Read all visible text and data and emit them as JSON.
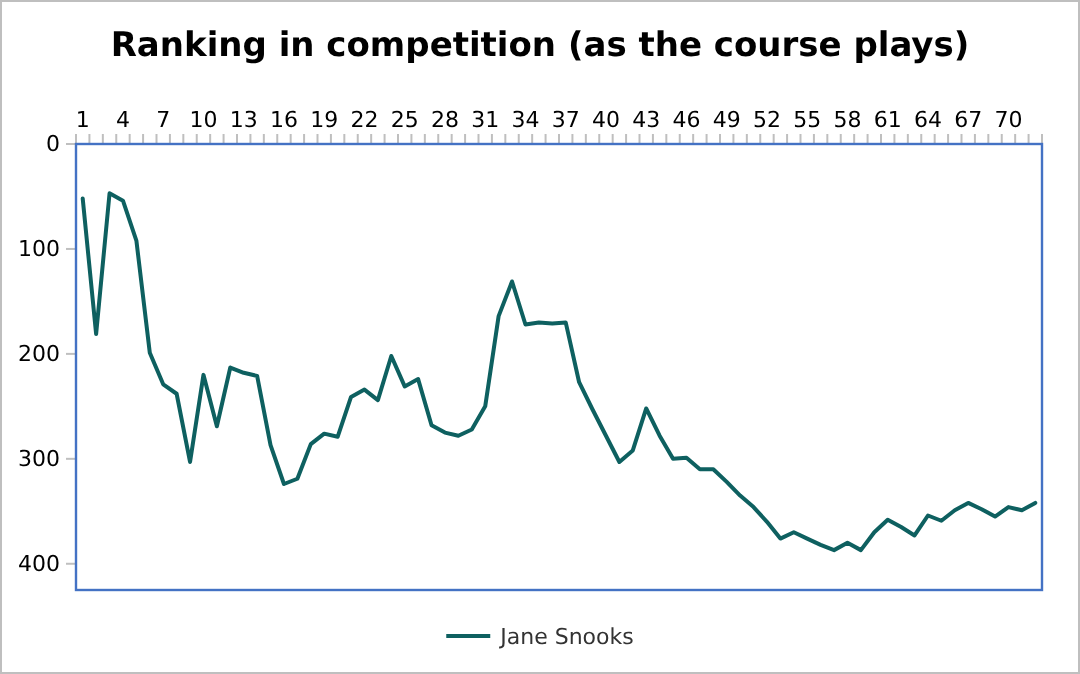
{
  "chart_data": {
    "type": "line",
    "title": "Ranking in competition (as the course plays)",
    "categories": [
      "1",
      null,
      null,
      "4",
      null,
      null,
      "7",
      null,
      null,
      "10",
      null,
      null,
      "13",
      null,
      null,
      "16",
      null,
      null,
      "19",
      null,
      null,
      "22",
      null,
      null,
      "25",
      null,
      null,
      "28",
      null,
      null,
      "31",
      null,
      null,
      "34",
      null,
      null,
      "37",
      null,
      null,
      "40",
      null,
      null,
      "43",
      null,
      null,
      "46",
      null,
      null,
      "49",
      null,
      null,
      "52",
      null,
      null,
      "55",
      null,
      null,
      "58",
      null,
      null,
      "61",
      null,
      null,
      "64",
      null,
      null,
      "67",
      null,
      null,
      "70",
      null,
      null
    ],
    "series": [
      {
        "name": "Jane Snooks",
        "color": "#0e6060",
        "values": [
          52,
          181,
          47,
          54,
          92,
          199,
          229,
          238,
          303,
          220,
          269,
          213,
          218,
          221,
          287,
          324,
          319,
          286,
          276,
          279,
          241,
          234,
          244,
          202,
          231,
          224,
          268,
          275,
          278,
          272,
          250,
          164,
          131,
          172,
          170,
          171,
          170,
          227,
          253,
          278,
          303,
          292,
          252,
          278,
          300,
          299,
          310,
          310,
          322,
          335,
          346,
          360,
          376,
          370,
          376,
          382,
          387,
          380,
          387,
          370,
          358,
          365,
          373,
          354,
          359,
          349,
          342,
          348,
          355,
          346,
          349,
          342
        ]
      }
    ],
    "ylim": [
      425,
      0
    ],
    "yticks": [
      0,
      100,
      200,
      300,
      400
    ],
    "grid": false,
    "legend": "bottom",
    "marker": "none",
    "line_style": "solid"
  }
}
